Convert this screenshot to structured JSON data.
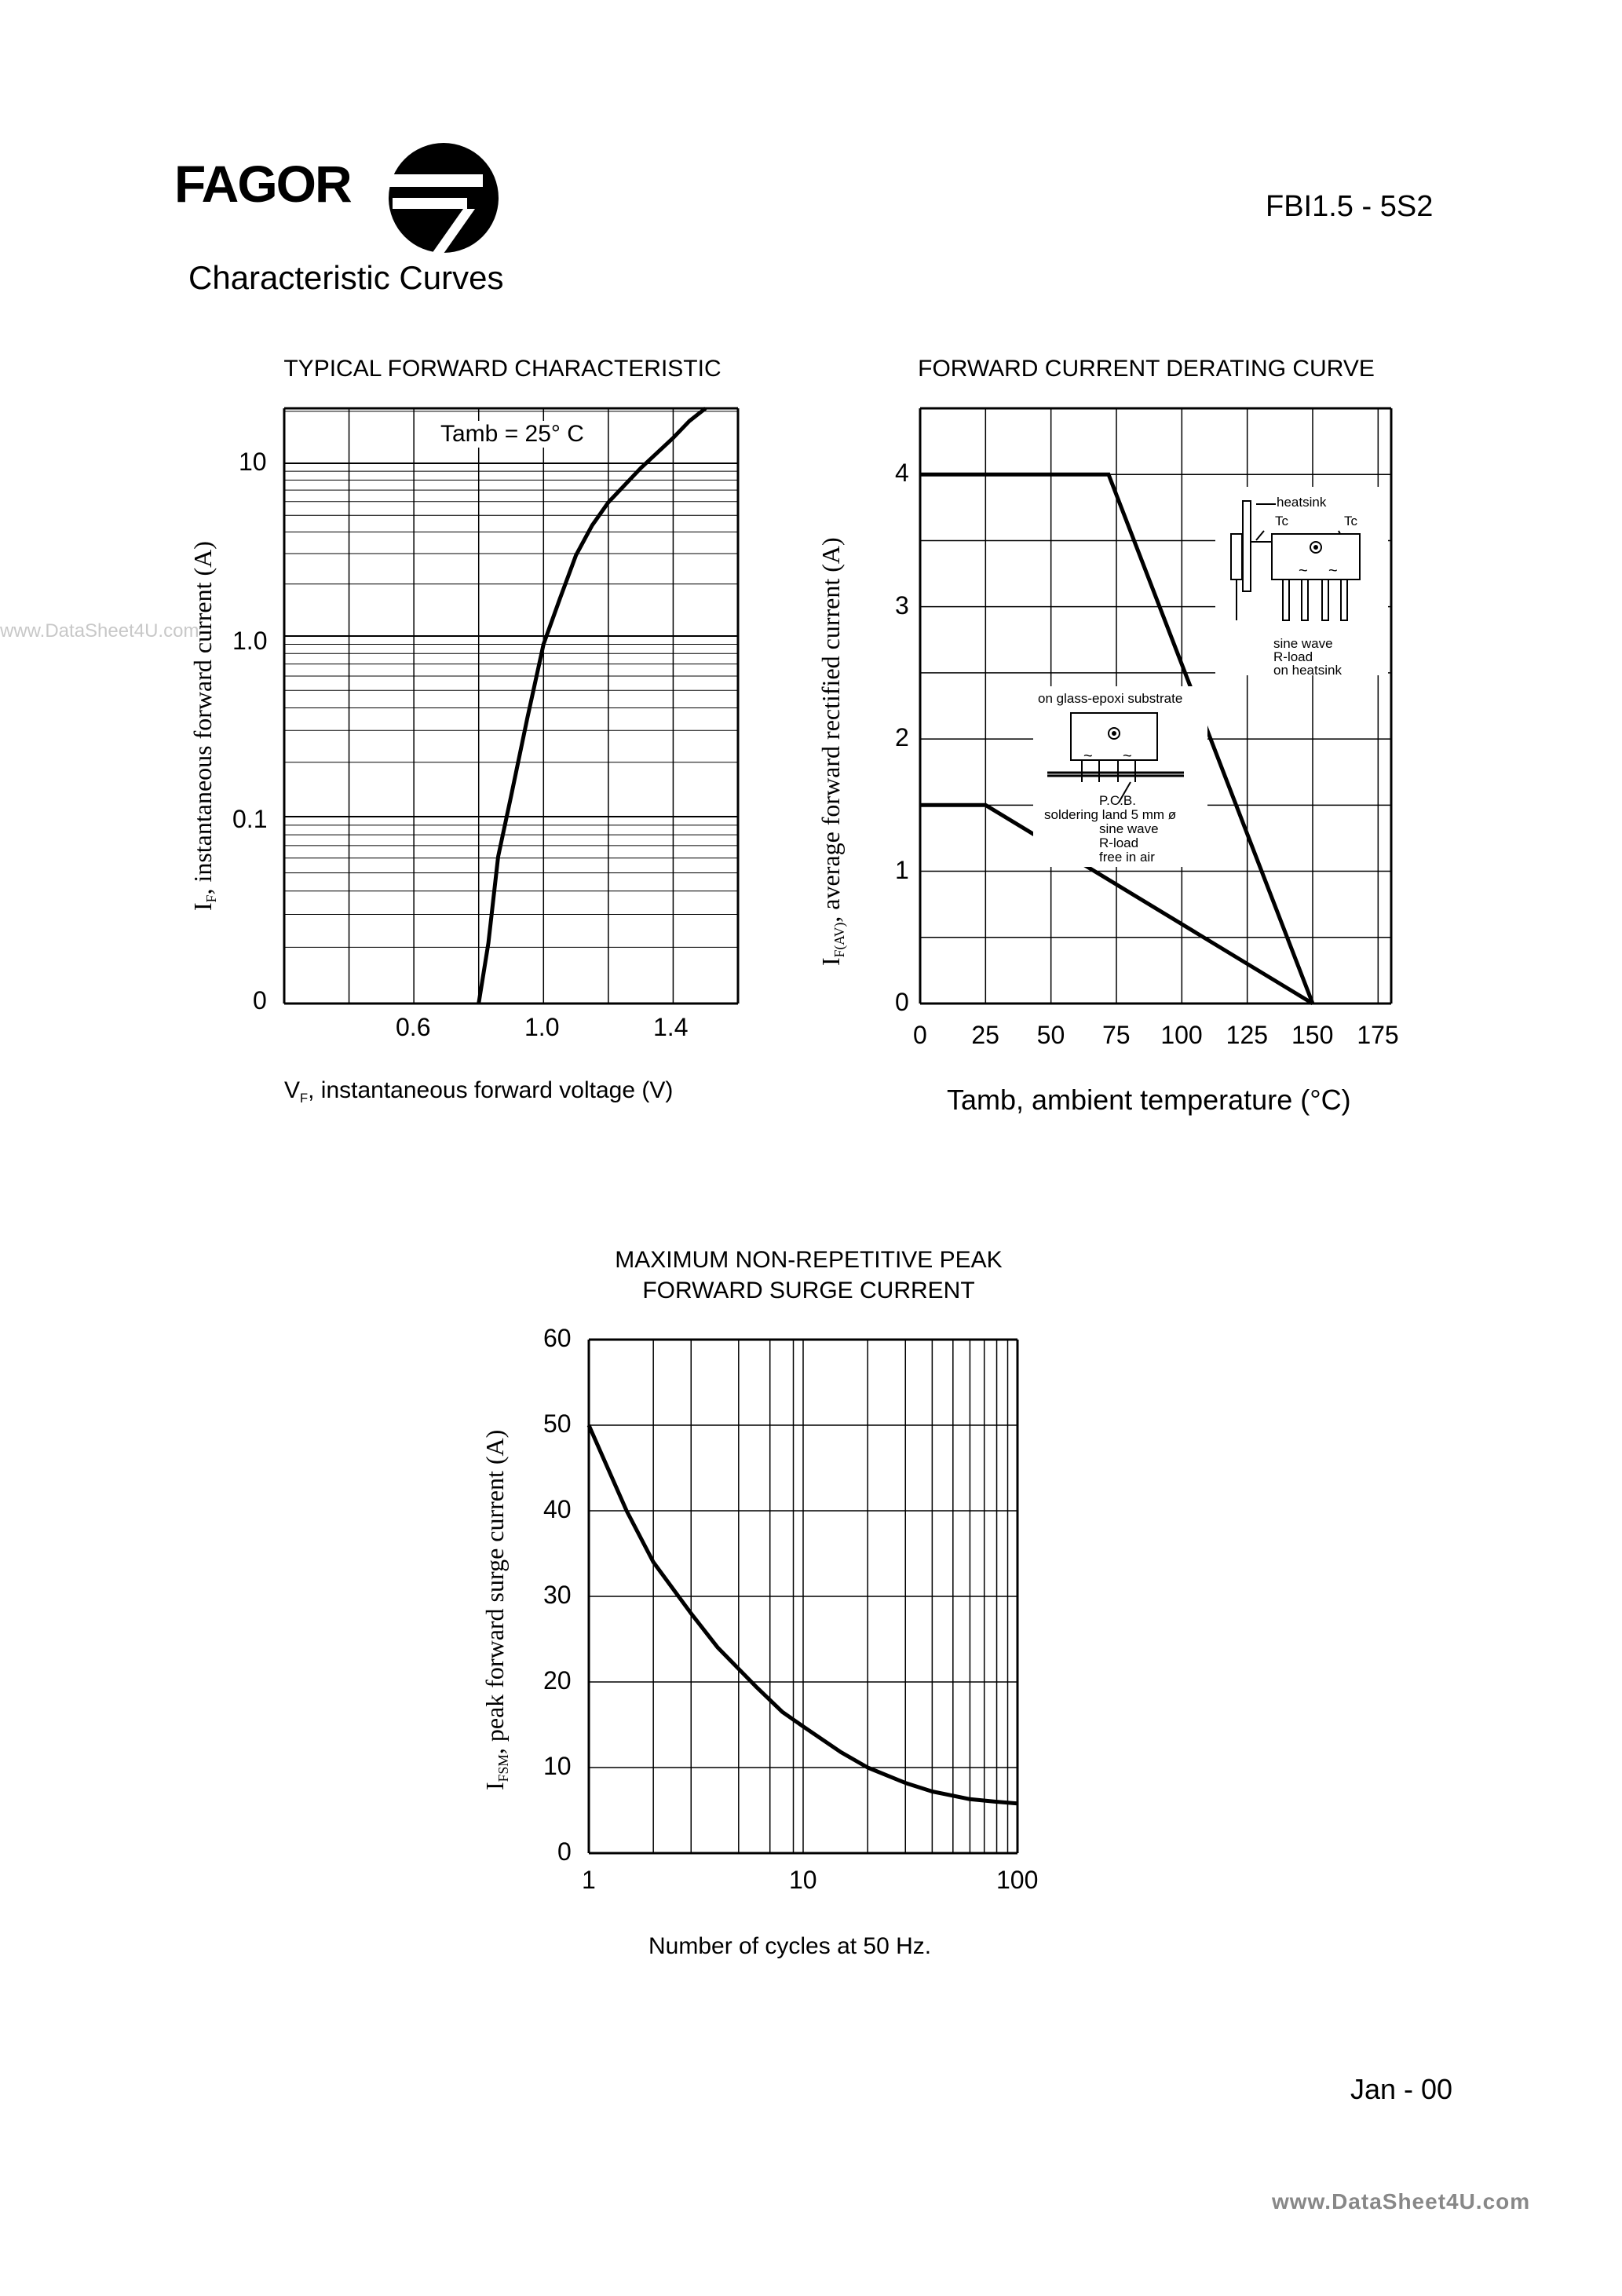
{
  "header": {
    "brand": "FAGOR",
    "part_number": "FBI1.5 - 5S2",
    "section_title": "Characteristic Curves"
  },
  "footer": {
    "date": "Jan - 00",
    "watermark_right": "www.DataSheet4U.com",
    "watermark_left": "www.DataSheet4U.com"
  },
  "colors": {
    "ink": "#000000",
    "paper": "#ffffff",
    "watermark": "#c8c8c8"
  },
  "chart_data": [
    {
      "type": "line",
      "title": "TYPICAL FORWARD CHARACTERISTIC",
      "xlabel_symbol": "V",
      "xlabel_sub": "F",
      "xlabel_text": ", instantaneous forward voltage (V)",
      "ylabel_symbol": "I",
      "ylabel_sub": "F",
      "ylabel_text": ", instantaneous forward current (A)",
      "annotation": "Tamb = 25° C",
      "x_tick_labels": [
        "0.6",
        "1.0",
        "1.4"
      ],
      "x_ticks": [
        0.6,
        1.0,
        1.4
      ],
      "y_tick_labels": [
        "10",
        "1.0",
        "0.1",
        "0"
      ],
      "xlim": [
        0.2,
        1.6
      ],
      "y_scale": "log",
      "grid": true,
      "series": [
        {
          "x": [
            0.8,
            0.83,
            0.86,
            0.9,
            0.95,
            1.0,
            1.05,
            1.1,
            1.15,
            1.2,
            1.3,
            1.4,
            1.45,
            1.5
          ],
          "y": [
            0.002,
            0.02,
            0.06,
            0.13,
            0.35,
            0.9,
            1.6,
            2.8,
            4.1,
            5.5,
            8.5,
            12.5,
            15.5,
            19
          ]
        }
      ]
    },
    {
      "type": "line",
      "title": "FORWARD CURRENT DERATING CURVE",
      "xlabel": "Tamb, ambient temperature (°C)",
      "ylabel_symbol": "I",
      "ylabel_sub": "F(AV)",
      "ylabel_text": ", average forward rectified current (A)",
      "x_ticks": [
        0,
        25,
        50,
        75,
        100,
        125,
        150,
        175
      ],
      "y_ticks": [
        0,
        1,
        2,
        3,
        4
      ],
      "xlim": [
        0,
        180
      ],
      "ylim": [
        0,
        4.5
      ],
      "grid": true,
      "series": [
        {
          "x": [
            0,
            72,
            150
          ],
          "y": [
            4,
            4,
            0
          ]
        },
        {
          "x": [
            0,
            25,
            150
          ],
          "y": [
            1.5,
            1.5,
            0
          ]
        }
      ],
      "inset_heatsink": {
        "labels": [
          "heatsink",
          "Tc",
          "Tc",
          "~",
          "~",
          "sine wave",
          "R-load",
          "on heatsink"
        ]
      },
      "inset_pcb": {
        "labels": [
          "on glass-epoxi substrate",
          "~",
          "~",
          "P.C.B.",
          "soldering land 5 mm ø",
          "sine wave",
          "R-load",
          "free in air"
        ]
      }
    },
    {
      "type": "line",
      "title_line1": "MAXIMUM NON-REPETITIVE PEAK",
      "title_line2": "FORWARD SURGE CURRENT",
      "xlabel": "Number of cycles at 50 Hz.",
      "ylabel_symbol": "I",
      "ylabel_sub": "FSM",
      "ylabel_text": ", peak forward surge current (A)",
      "x_scale": "log",
      "x_ticks": [
        1,
        10,
        100
      ],
      "y_ticks": [
        0,
        10,
        20,
        30,
        40,
        50,
        60
      ],
      "ylim": [
        0,
        60
      ],
      "grid": true,
      "series": [
        {
          "x": [
            1,
            1.5,
            2,
            3,
            4,
            6,
            8,
            10,
            15,
            20,
            30,
            40,
            60,
            80,
            100
          ],
          "y": [
            50,
            40,
            34,
            28,
            24,
            19.5,
            16.5,
            14.8,
            11.8,
            10,
            8.2,
            7.2,
            6.3,
            6,
            5.8
          ]
        }
      ]
    }
  ]
}
